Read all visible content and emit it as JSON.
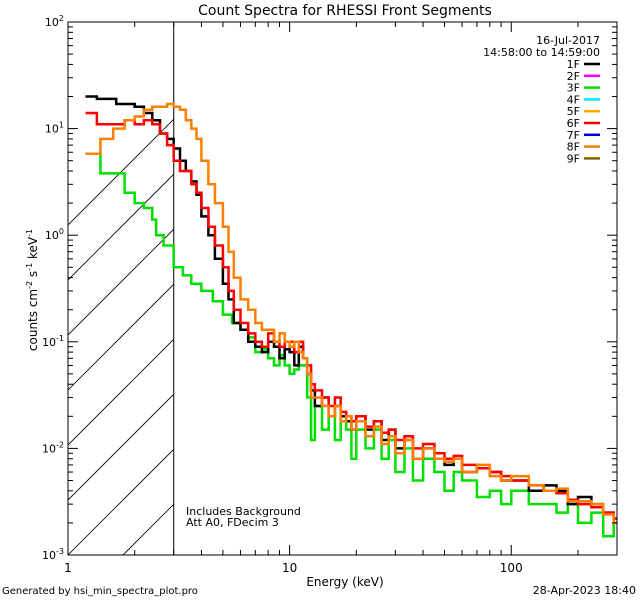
{
  "chart_data": {
    "type": "line",
    "title": "Count Spectra for RHESSI Front Segments",
    "xlabel": "Energy (keV)",
    "ylabel": "counts cm",
    "ylabel_sup1": "-2",
    "ylabel_mid": " s",
    "ylabel_sup2": "-1",
    "ylabel_end": " keV",
    "ylabel_sup3": "-1",
    "xscale": "log",
    "yscale": "log",
    "xlim": [
      1,
      300
    ],
    "ylim": [
      0.001,
      100
    ],
    "x_ticks": [
      {
        "value": 1,
        "label": "1"
      },
      {
        "value": 10,
        "label": "10"
      },
      {
        "value": 100,
        "label": "100"
      }
    ],
    "y_ticks": [
      {
        "value": 100,
        "base": "10",
        "exp": "2"
      },
      {
        "value": 10,
        "base": "10",
        "exp": "1"
      },
      {
        "value": 1,
        "base": "10",
        "exp": "0"
      },
      {
        "value": 0.1,
        "base": "10",
        "exp": "-1"
      },
      {
        "value": 0.01,
        "base": "10",
        "exp": "-2"
      },
      {
        "value": 0.001,
        "base": "10",
        "exp": "-3"
      }
    ],
    "date": "16-Jul-2017",
    "time_range": "14:58:00 to 14:59:00",
    "annotations": [
      "Includes Background",
      "Att A0, FDecim 3"
    ],
    "hatched_region_max_energy_keV": 3,
    "legend_position": "top-right",
    "legend": [
      {
        "label": "1F",
        "color": "#000000"
      },
      {
        "label": "2F",
        "color": "#ff00ff"
      },
      {
        "label": "3F",
        "color": "#00e000"
      },
      {
        "label": "4F",
        "color": "#00e5ff"
      },
      {
        "label": "5F",
        "color": "#ffaa00"
      },
      {
        "label": "6F",
        "color": "#ff0000"
      },
      {
        "label": "7F",
        "color": "#0000cc"
      },
      {
        "label": "8F",
        "color": "#ff7f00"
      },
      {
        "label": "9F",
        "color": "#806000"
      }
    ],
    "series": [
      {
        "name": "3F",
        "color": "#00e000",
        "points": [
          [
            1.2,
            5.8
          ],
          [
            1.35,
            5.8
          ],
          [
            1.4,
            3.8
          ],
          [
            1.7,
            3.8
          ],
          [
            1.8,
            2.5
          ],
          [
            2.0,
            2.0
          ],
          [
            2.2,
            1.8
          ],
          [
            2.4,
            1.4
          ],
          [
            2.5,
            1.0
          ],
          [
            2.7,
            0.8
          ],
          [
            3.0,
            0.5
          ],
          [
            3.3,
            0.42
          ],
          [
            3.6,
            0.35
          ],
          [
            4.0,
            0.3
          ],
          [
            4.5,
            0.24
          ],
          [
            5.0,
            0.18
          ],
          [
            5.5,
            0.15
          ],
          [
            6.0,
            0.13
          ],
          [
            6.5,
            0.11
          ],
          [
            7.0,
            0.08
          ],
          [
            7.5,
            0.085
          ],
          [
            8.0,
            0.07
          ],
          [
            8.5,
            0.06
          ],
          [
            9.0,
            0.075
          ],
          [
            9.5,
            0.06
          ],
          [
            10,
            0.05
          ],
          [
            10.5,
            0.055
          ],
          [
            11,
            0.06
          ],
          [
            11.5,
            0.06
          ],
          [
            12,
            0.03
          ],
          [
            12.5,
            0.012
          ],
          [
            13,
            0.025
          ],
          [
            14,
            0.015
          ],
          [
            15,
            0.02
          ],
          [
            16,
            0.012
          ],
          [
            17,
            0.02
          ],
          [
            18,
            0.015
          ],
          [
            19,
            0.008
          ],
          [
            20,
            0.015
          ],
          [
            22,
            0.01
          ],
          [
            24,
            0.015
          ],
          [
            26,
            0.008
          ],
          [
            28,
            0.012
          ],
          [
            30,
            0.006
          ],
          [
            33,
            0.01
          ],
          [
            36,
            0.005
          ],
          [
            40,
            0.008
          ],
          [
            45,
            0.006
          ],
          [
            50,
            0.004
          ],
          [
            55,
            0.006
          ],
          [
            60,
            0.005
          ],
          [
            70,
            0.0035
          ],
          [
            80,
            0.004
          ],
          [
            90,
            0.003
          ],
          [
            100,
            0.004
          ],
          [
            120,
            0.003
          ],
          [
            140,
            0.003
          ],
          [
            160,
            0.0025
          ],
          [
            180,
            0.003
          ],
          [
            200,
            0.002
          ],
          [
            230,
            0.0025
          ],
          [
            260,
            0.0015
          ],
          [
            290,
            0.002
          ]
        ]
      },
      {
        "name": "1F",
        "color": "#000000",
        "points": [
          [
            1.2,
            20
          ],
          [
            1.35,
            19
          ],
          [
            1.5,
            19
          ],
          [
            1.65,
            17
          ],
          [
            1.8,
            17
          ],
          [
            2.0,
            16
          ],
          [
            2.2,
            14
          ],
          [
            2.4,
            12
          ],
          [
            2.6,
            9.0
          ],
          [
            2.8,
            8.0
          ],
          [
            3.0,
            6.5
          ],
          [
            3.2,
            5.0
          ],
          [
            3.4,
            4.0
          ],
          [
            3.6,
            3.2
          ],
          [
            3.8,
            2.4
          ],
          [
            4.0,
            1.5
          ],
          [
            4.3,
            1.0
          ],
          [
            4.6,
            0.6
          ],
          [
            5.0,
            0.35
          ],
          [
            5.3,
            0.25
          ],
          [
            5.6,
            0.15
          ],
          [
            6.0,
            0.13
          ],
          [
            6.5,
            0.1
          ],
          [
            7.0,
            0.09
          ],
          [
            7.5,
            0.08
          ],
          [
            8.0,
            0.1
          ],
          [
            8.5,
            0.09
          ],
          [
            9.0,
            0.07
          ],
          [
            9.5,
            0.085
          ],
          [
            10,
            0.08
          ],
          [
            10.5,
            0.06
          ],
          [
            11,
            0.09
          ],
          [
            11.5,
            0.07
          ],
          [
            12,
            0.05
          ],
          [
            12.5,
            0.035
          ],
          [
            13,
            0.025
          ],
          [
            14,
            0.03
          ],
          [
            15,
            0.02
          ],
          [
            16,
            0.025
          ],
          [
            17,
            0.02
          ],
          [
            18,
            0.018
          ],
          [
            19,
            0.015
          ],
          [
            20,
            0.02
          ],
          [
            22,
            0.015
          ],
          [
            24,
            0.018
          ],
          [
            26,
            0.012
          ],
          [
            28,
            0.015
          ],
          [
            30,
            0.01
          ],
          [
            33,
            0.012
          ],
          [
            36,
            0.008
          ],
          [
            40,
            0.01
          ],
          [
            45,
            0.008
          ],
          [
            50,
            0.007
          ],
          [
            55,
            0.008
          ],
          [
            60,
            0.006
          ],
          [
            70,
            0.0065
          ],
          [
            80,
            0.006
          ],
          [
            90,
            0.005
          ],
          [
            100,
            0.005
          ],
          [
            120,
            0.004
          ],
          [
            140,
            0.0045
          ],
          [
            160,
            0.004
          ],
          [
            180,
            0.003
          ],
          [
            200,
            0.0035
          ],
          [
            230,
            0.003
          ],
          [
            260,
            0.0025
          ],
          [
            290,
            0.0022
          ]
        ]
      },
      {
        "name": "6F",
        "color": "#ff0000",
        "points": [
          [
            1.2,
            14
          ],
          [
            1.35,
            11
          ],
          [
            1.6,
            11
          ],
          [
            1.8,
            12
          ],
          [
            2.0,
            11
          ],
          [
            2.2,
            12
          ],
          [
            2.4,
            11
          ],
          [
            2.6,
            9.0
          ],
          [
            2.8,
            7.0
          ],
          [
            3.0,
            5.0
          ],
          [
            3.2,
            4.0
          ],
          [
            3.4,
            4.0
          ],
          [
            3.6,
            3.0
          ],
          [
            3.8,
            2.5
          ],
          [
            4.0,
            1.8
          ],
          [
            4.3,
            1.2
          ],
          [
            4.6,
            0.8
          ],
          [
            5.0,
            0.5
          ],
          [
            5.3,
            0.3
          ],
          [
            5.6,
            0.2
          ],
          [
            6.0,
            0.15
          ],
          [
            6.5,
            0.12
          ],
          [
            7.0,
            0.1
          ],
          [
            7.5,
            0.09
          ],
          [
            8.0,
            0.12
          ],
          [
            8.5,
            0.1
          ],
          [
            9.0,
            0.09
          ],
          [
            9.5,
            0.1
          ],
          [
            10,
            0.1
          ],
          [
            10.5,
            0.08
          ],
          [
            11,
            0.1
          ],
          [
            11.5,
            0.07
          ],
          [
            12,
            0.06
          ],
          [
            12.5,
            0.04
          ],
          [
            13,
            0.035
          ],
          [
            14,
            0.03
          ],
          [
            15,
            0.025
          ],
          [
            16,
            0.03
          ],
          [
            17,
            0.022
          ],
          [
            18,
            0.02
          ],
          [
            19,
            0.018
          ],
          [
            20,
            0.02
          ],
          [
            22,
            0.016
          ],
          [
            24,
            0.018
          ],
          [
            26,
            0.014
          ],
          [
            28,
            0.015
          ],
          [
            30,
            0.012
          ],
          [
            33,
            0.013
          ],
          [
            36,
            0.01
          ],
          [
            40,
            0.011
          ],
          [
            45,
            0.009
          ],
          [
            50,
            0.008
          ],
          [
            55,
            0.0085
          ],
          [
            60,
            0.007
          ],
          [
            70,
            0.0065
          ],
          [
            80,
            0.006
          ],
          [
            90,
            0.0055
          ],
          [
            100,
            0.005
          ],
          [
            120,
            0.0045
          ],
          [
            140,
            0.004
          ],
          [
            160,
            0.0038
          ],
          [
            180,
            0.0033
          ],
          [
            200,
            0.003
          ],
          [
            230,
            0.0028
          ],
          [
            260,
            0.0025
          ],
          [
            290,
            0.0022
          ]
        ]
      },
      {
        "name": "8F",
        "color": "#ff7f00",
        "points": [
          [
            1.2,
            5.8
          ],
          [
            1.35,
            5.8
          ],
          [
            1.4,
            8.0
          ],
          [
            1.6,
            10
          ],
          [
            1.8,
            12
          ],
          [
            2.0,
            13
          ],
          [
            2.2,
            15
          ],
          [
            2.4,
            16
          ],
          [
            2.6,
            16
          ],
          [
            2.8,
            17
          ],
          [
            3.0,
            16
          ],
          [
            3.2,
            15
          ],
          [
            3.4,
            12
          ],
          [
            3.6,
            10
          ],
          [
            3.8,
            8.0
          ],
          [
            4.0,
            5.0
          ],
          [
            4.3,
            3.0
          ],
          [
            4.6,
            2.0
          ],
          [
            5.0,
            1.2
          ],
          [
            5.3,
            0.7
          ],
          [
            5.6,
            0.4
          ],
          [
            6.0,
            0.25
          ],
          [
            6.5,
            0.2
          ],
          [
            7.0,
            0.15
          ],
          [
            7.5,
            0.13
          ],
          [
            8.0,
            0.13
          ],
          [
            8.5,
            0.1
          ],
          [
            9.0,
            0.12
          ],
          [
            9.5,
            0.1
          ],
          [
            10,
            0.09
          ],
          [
            10.5,
            0.1
          ],
          [
            11,
            0.08
          ],
          [
            11.5,
            0.07
          ],
          [
            12,
            0.05
          ],
          [
            12.5,
            0.03
          ],
          [
            13,
            0.03
          ],
          [
            14,
            0.025
          ],
          [
            15,
            0.02
          ],
          [
            16,
            0.025
          ],
          [
            17,
            0.018
          ],
          [
            18,
            0.02
          ],
          [
            19,
            0.015
          ],
          [
            20,
            0.018
          ],
          [
            22,
            0.013
          ],
          [
            24,
            0.016
          ],
          [
            26,
            0.011
          ],
          [
            28,
            0.013
          ],
          [
            30,
            0.009
          ],
          [
            33,
            0.012
          ],
          [
            36,
            0.008
          ],
          [
            40,
            0.01
          ],
          [
            45,
            0.008
          ],
          [
            50,
            0.0075
          ],
          [
            55,
            0.008
          ],
          [
            60,
            0.006
          ],
          [
            70,
            0.007
          ],
          [
            80,
            0.0055
          ],
          [
            90,
            0.005
          ],
          [
            100,
            0.0055
          ],
          [
            120,
            0.0045
          ],
          [
            140,
            0.004
          ],
          [
            160,
            0.0042
          ],
          [
            180,
            0.0032
          ],
          [
            200,
            0.0032
          ],
          [
            230,
            0.003
          ],
          [
            260,
            0.0024
          ],
          [
            290,
            0.002
          ]
        ]
      }
    ]
  },
  "footer": {
    "generated_by": "Generated by hsi_min_spectra_plot.pro",
    "timestamp": "28-Apr-2023 18:40"
  }
}
